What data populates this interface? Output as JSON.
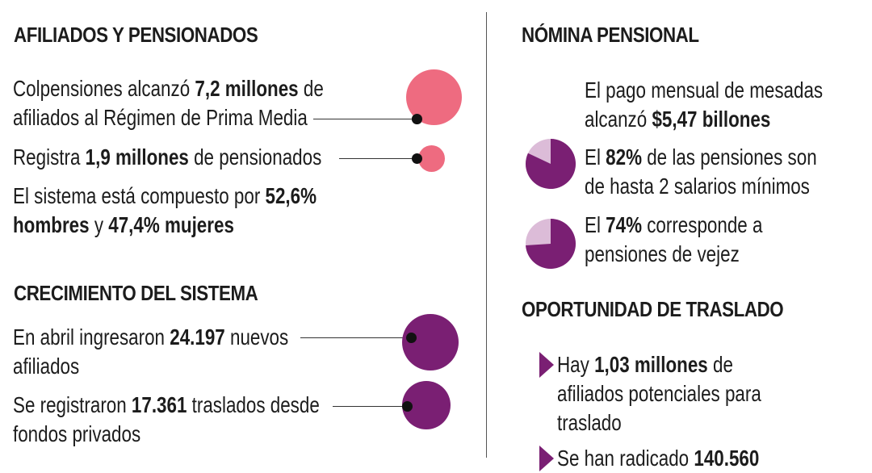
{
  "colors": {
    "pink": "#ee6b80",
    "purple": "#7a1f73",
    "light_purple": "#dcbcd8",
    "text": "#1c1c1c"
  },
  "left": {
    "afiliados": {
      "heading": "AFILIADOS Y PENSIONADOS",
      "line1": [
        "Colpensiones alcanzó ",
        "7,2 millones",
        " de"
      ],
      "line2": "afiliados al Régimen de Prima Media",
      "line3": [
        "Registra ",
        "1,9 millones",
        " de pensionados"
      ],
      "line4": [
        "El sistema está compuesto por ",
        "52,6%"
      ],
      "line5": [
        "hombres",
        " y ",
        "47,4% mujeres"
      ]
    },
    "crecimiento": {
      "heading": "CRECIMIENTO DEL SISTEMA",
      "line1": [
        "En abril ingresaron ",
        "24.197",
        " nuevos"
      ],
      "line2": "afiliados",
      "line3": [
        "Se registraron ",
        "17.361",
        " traslados desde"
      ],
      "line4": "fondos privados"
    }
  },
  "right": {
    "nomina": {
      "heading": "NÓMINA PENSIONAL",
      "line1": "El pago mensual de mesadas",
      "line2": [
        "alcanzó ",
        "$5,47 billones"
      ],
      "line3": [
        "El ",
        "82%",
        " de las pensiones son"
      ],
      "line4": "de hasta 2 salarios mínimos",
      "line5": [
        "El ",
        "74%",
        " corresponde a"
      ],
      "line6": "pensiones de vejez",
      "pie1_fraction": 0.82,
      "pie2_fraction": 0.74
    },
    "traslado": {
      "heading": "OPORTUNIDAD DE TRASLADO",
      "line1": [
        "Hay ",
        "1,03 millones",
        " de"
      ],
      "line2": "afiliados potenciales para",
      "line3": "traslado",
      "line4": [
        "Se han radicado ",
        "140.560"
      ]
    }
  }
}
